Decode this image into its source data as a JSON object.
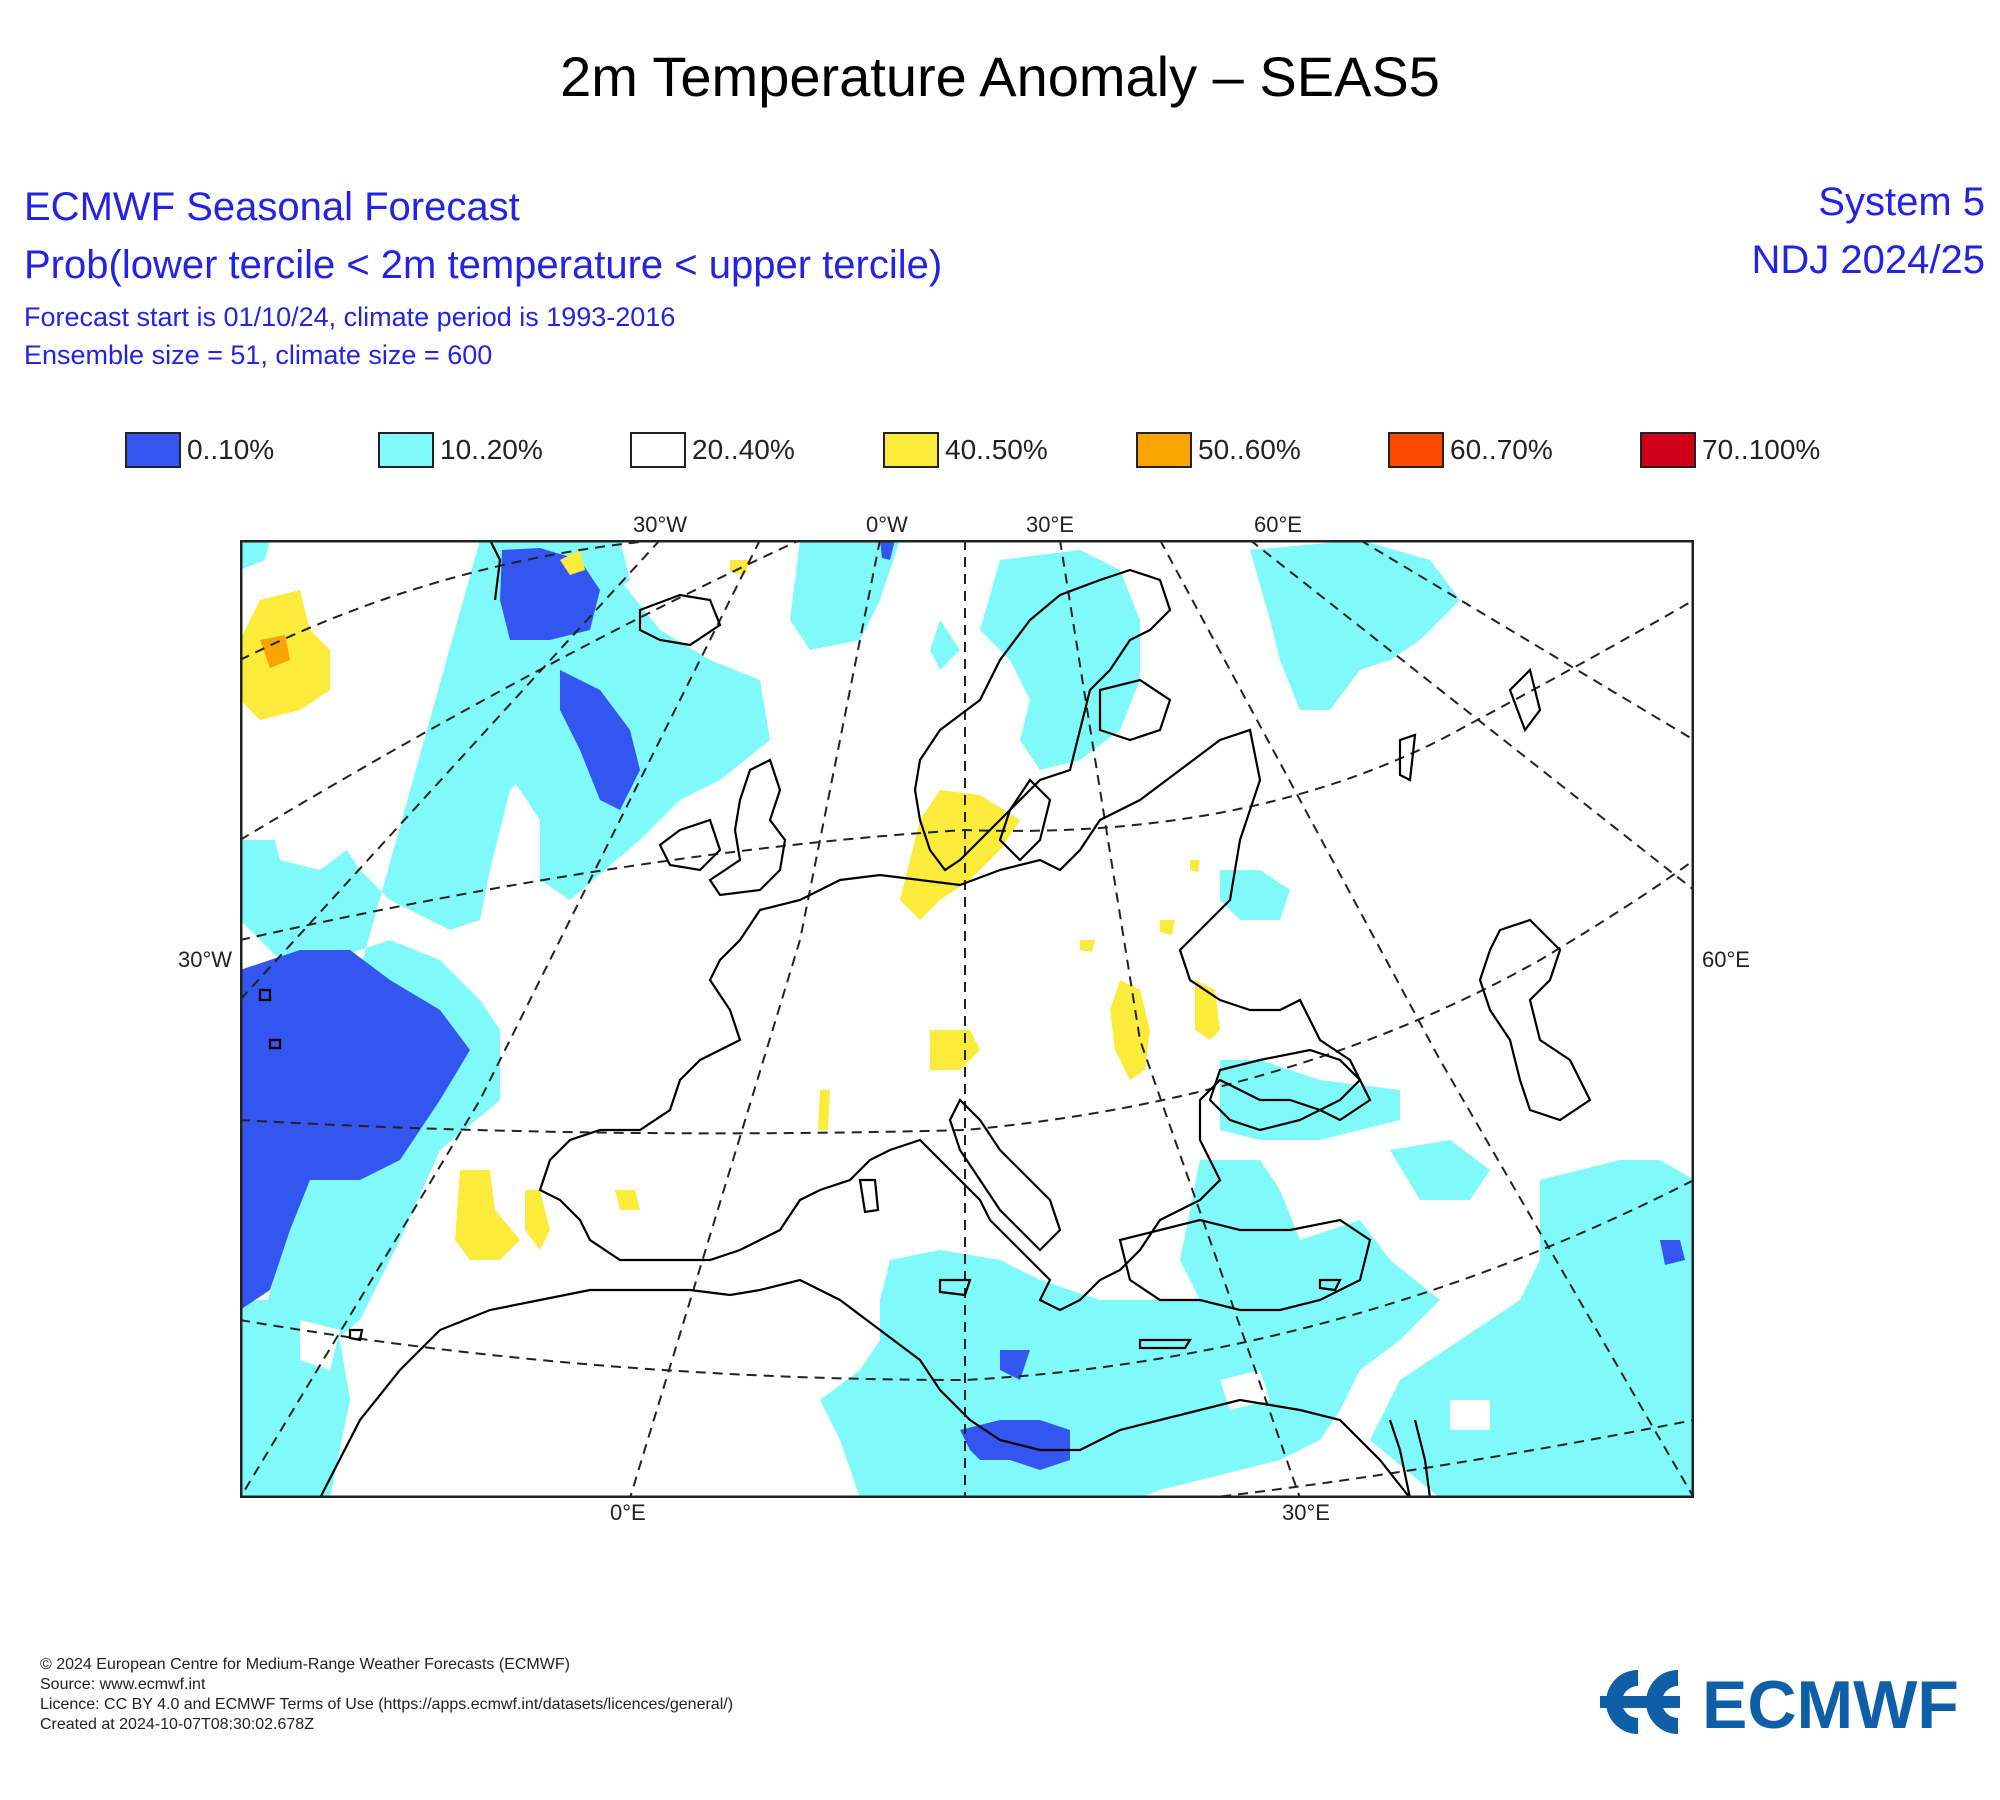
{
  "page": {
    "title": "2m Temperature Anomaly – SEAS5"
  },
  "header": {
    "line1": "ECMWF Seasonal Forecast",
    "line2": "Prob(lower tercile < 2m temperature < upper tercile)",
    "line3": "Forecast start is 01/10/24, climate period is 1993-2016",
    "line4": "Ensemble size = 51, climate size = 600",
    "system": "System 5",
    "season": "NDJ 2024/25"
  },
  "legend": [
    {
      "label": "0..10%",
      "color": "#3355f0"
    },
    {
      "label": "10..20%",
      "color": "#7ff9f9"
    },
    {
      "label": "20..40%",
      "color": "#ffffff"
    },
    {
      "label": "40..50%",
      "color": "#fbeb3a"
    },
    {
      "label": "50..60%",
      "color": "#f9a400"
    },
    {
      "label": "60..70%",
      "color": "#fa4a00"
    },
    {
      "label": "70..100%",
      "color": "#d0001a"
    }
  ],
  "map": {
    "top_labels": [
      "30°W",
      "0°W",
      "30°E",
      "60°E"
    ],
    "left_label": "30°W",
    "right_label": "60°E",
    "bottom_labels": [
      "0°E",
      "30°E"
    ]
  },
  "footer": {
    "line1": "© 2024 European Centre for Medium-Range Weather Forecasts (ECMWF)",
    "line2": "Source: www.ecmwf.int",
    "line3": "Licence: CC BY 4.0 and ECMWF Terms of Use (https://apps.ecmwf.int/datasets/licences/general/)",
    "line4": "Created at 2024-10-07T08:30:02.678Z"
  },
  "logo": {
    "text": "ECMWF",
    "color": "#0f5fa8"
  }
}
